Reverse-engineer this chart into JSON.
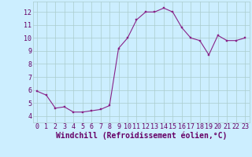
{
  "x": [
    0,
    1,
    2,
    3,
    4,
    5,
    6,
    7,
    8,
    9,
    10,
    11,
    12,
    13,
    14,
    15,
    16,
    17,
    18,
    19,
    20,
    21,
    22,
    23
  ],
  "y": [
    5.9,
    5.6,
    4.6,
    4.7,
    4.3,
    4.3,
    4.4,
    4.5,
    4.8,
    9.2,
    10.0,
    11.4,
    12.0,
    12.0,
    12.3,
    12.0,
    10.8,
    10.0,
    9.8,
    8.7,
    10.2,
    9.8,
    9.8,
    10.0
  ],
  "line_color": "#882288",
  "marker_color": "#882288",
  "bg_color": "#cceeff",
  "grid_color": "#aacccc",
  "xlabel": "Windchill (Refroidissement éolien,°C)",
  "xlim": [
    -0.5,
    23.5
  ],
  "ylim": [
    3.5,
    12.8
  ],
  "yticks": [
    4,
    5,
    6,
    7,
    8,
    9,
    10,
    11,
    12
  ],
  "xtick_labels": [
    "0",
    "1",
    "2",
    "3",
    "4",
    "5",
    "6",
    "7",
    "8",
    "9",
    "10",
    "11",
    "12",
    "13",
    "14",
    "15",
    "16",
    "17",
    "18",
    "19",
    "20",
    "21",
    "22",
    "23"
  ],
  "font_color": "#660066",
  "tick_fontsize": 6.0,
  "xlabel_fontsize": 7.0,
  "line_width": 0.8,
  "marker_size": 2.0
}
